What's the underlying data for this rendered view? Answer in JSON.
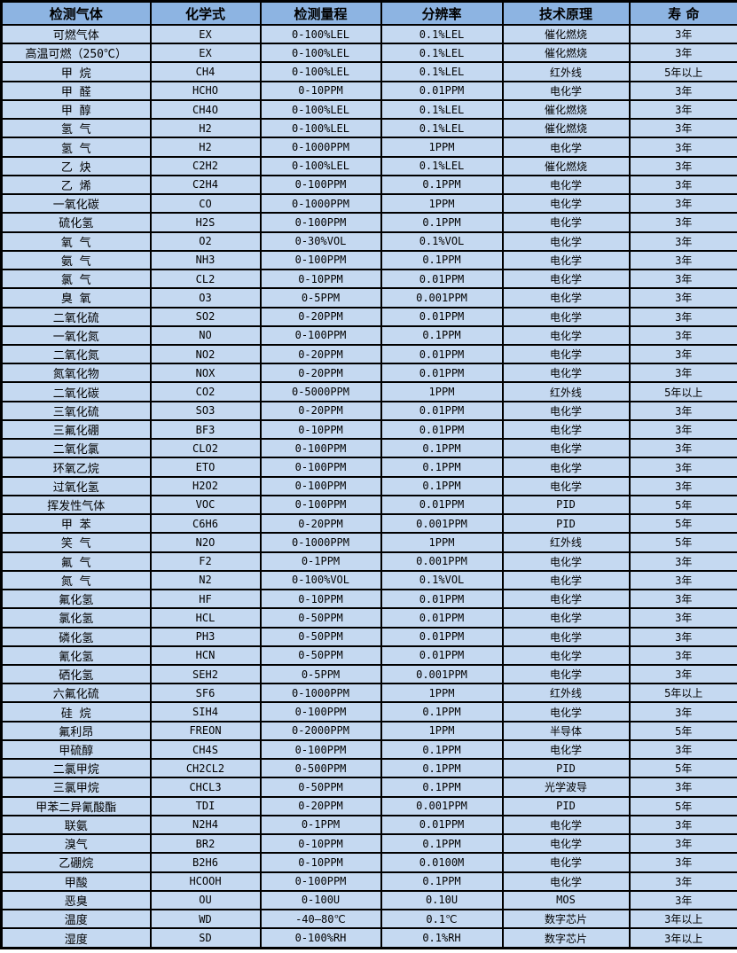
{
  "colors": {
    "header_bg": "#8DB4E2",
    "row_bg": "#C5D9F1",
    "border": "#000000",
    "text": "#000000",
    "page_bg": "#FFFFFF"
  },
  "table": {
    "headers": [
      "检测气体",
      "化学式",
      "检测量程",
      "分辨率",
      "技术原理",
      "寿 命"
    ],
    "column_keys": [
      "gas-name",
      "chemical-formula",
      "detection-range",
      "resolution",
      "technology-principle",
      "lifespan"
    ],
    "rows": [
      [
        "可燃气体",
        "EX",
        "0-100%LEL",
        "0.1%LEL",
        "催化燃烧",
        "3年"
      ],
      [
        "高温可燃（250℃）",
        "EX",
        "0-100%LEL",
        "0.1%LEL",
        "催化燃烧",
        "3年"
      ],
      [
        "甲 烷",
        "CH4",
        "0-100%LEL",
        "0.1%LEL",
        "红外线",
        "5年以上"
      ],
      [
        "甲 醛",
        "HCHO",
        "0-10PPM",
        "0.01PPM",
        "电化学",
        "3年"
      ],
      [
        "甲 醇",
        "CH4O",
        "0-100%LEL",
        "0.1%LEL",
        "催化燃烧",
        "3年"
      ],
      [
        "氢 气",
        "H2",
        "0-100%LEL",
        "0.1%LEL",
        "催化燃烧",
        "3年"
      ],
      [
        "氢 气",
        "H2",
        "0-1000PPM",
        "1PPM",
        "电化学",
        "3年"
      ],
      [
        "乙 炔",
        "C2H2",
        "0-100%LEL",
        "0.1%LEL",
        "催化燃烧",
        "3年"
      ],
      [
        "乙 烯",
        "C2H4",
        "0-100PPM",
        "0.1PPM",
        "电化学",
        "3年"
      ],
      [
        "一氧化碳",
        "CO",
        "0-1000PPM",
        "1PPM",
        "电化学",
        "3年"
      ],
      [
        "硫化氢",
        "H2S",
        "0-100PPM",
        "0.1PPM",
        "电化学",
        "3年"
      ],
      [
        "氧 气",
        "O2",
        "0-30%VOL",
        "0.1%VOL",
        "电化学",
        "3年"
      ],
      [
        "氨 气",
        "NH3",
        "0-100PPM",
        "0.1PPM",
        "电化学",
        "3年"
      ],
      [
        "氯 气",
        "CL2",
        "0-10PPM",
        "0.01PPM",
        "电化学",
        "3年"
      ],
      [
        "臭 氧",
        "O3",
        "0-5PPM",
        "0.001PPM",
        "电化学",
        "3年"
      ],
      [
        "二氧化硫",
        "SO2",
        "0-20PPM",
        "0.01PPM",
        "电化学",
        "3年"
      ],
      [
        "一氧化氮",
        "NO",
        "0-100PPM",
        "0.1PPM",
        "电化学",
        "3年"
      ],
      [
        "二氧化氮",
        "NO2",
        "0-20PPM",
        "0.01PPM",
        "电化学",
        "3年"
      ],
      [
        "氮氧化物",
        "NOX",
        "0-20PPM",
        "0.01PPM",
        "电化学",
        "3年"
      ],
      [
        "二氧化碳",
        "CO2",
        "0-5000PPM",
        "1PPM",
        "红外线",
        "5年以上"
      ],
      [
        "三氧化硫",
        "SO3",
        "0-20PPM",
        "0.01PPM",
        "电化学",
        "3年"
      ],
      [
        "三氟化硼",
        "BF3",
        "0-10PPM",
        "0.01PPM",
        "电化学",
        "3年"
      ],
      [
        "二氧化氯",
        "CLO2",
        "0-100PPM",
        "0.1PPM",
        "电化学",
        "3年"
      ],
      [
        "环氧乙烷",
        "ETO",
        "0-100PPM",
        "0.1PPM",
        "电化学",
        "3年"
      ],
      [
        "过氧化氢",
        "H2O2",
        "0-100PPM",
        "0.1PPM",
        "电化学",
        "3年"
      ],
      [
        "挥发性气体",
        "VOC",
        "0-100PPM",
        "0.01PPM",
        "PID",
        "5年"
      ],
      [
        "甲 苯",
        "C6H6",
        "0-20PPM",
        "0.001PPM",
        "PID",
        "5年"
      ],
      [
        "笑 气",
        "N2O",
        "0-1000PPM",
        "1PPM",
        "红外线",
        "5年"
      ],
      [
        "氟 气",
        "F2",
        "0-1PPM",
        "0.001PPM",
        "电化学",
        "3年"
      ],
      [
        "氮 气",
        "N2",
        "0-100%VOL",
        "0.1%VOL",
        "电化学",
        "3年"
      ],
      [
        "氟化氢",
        "HF",
        "0-10PPM",
        "0.01PPM",
        "电化学",
        "3年"
      ],
      [
        "氯化氢",
        "HCL",
        "0-50PPM",
        "0.01PPM",
        "电化学",
        "3年"
      ],
      [
        "磷化氢",
        "PH3",
        "0-50PPM",
        "0.01PPM",
        "电化学",
        "3年"
      ],
      [
        "氰化氢",
        "HCN",
        "0-50PPM",
        "0.01PPM",
        "电化学",
        "3年"
      ],
      [
        "硒化氢",
        "SEH2",
        "0-5PPM",
        "0.001PPM",
        "电化学",
        "3年"
      ],
      [
        "六氟化硫",
        "SF6",
        "0-1000PPM",
        "1PPM",
        "红外线",
        "5年以上"
      ],
      [
        "硅 烷",
        "SIH4",
        "0-100PPM",
        "0.1PPM",
        "电化学",
        "3年"
      ],
      [
        "氟利昂",
        "FREON",
        "0-2000PPM",
        "1PPM",
        "半导体",
        "5年"
      ],
      [
        "甲硫醇",
        "CH4S",
        "0-100PPM",
        "0.1PPM",
        "电化学",
        "3年"
      ],
      [
        "二氯甲烷",
        "CH2CL2",
        "0-500PPM",
        "0.1PPM",
        "PID",
        "5年"
      ],
      [
        "三氯甲烷",
        "CHCL3",
        "0-50PPM",
        "0.1PPM",
        "光学波导",
        "3年"
      ],
      [
        "甲苯二异氰酸酯",
        "TDI",
        "0-20PPM",
        "0.001PPM",
        "PID",
        "5年"
      ],
      [
        "联氨",
        "N2H4",
        "0-1PPM",
        "0.01PPM",
        "电化学",
        "3年"
      ],
      [
        "溴气",
        "BR2",
        "0-10PPM",
        "0.1PPM",
        "电化学",
        "3年"
      ],
      [
        "乙硼烷",
        "B2H6",
        "0-10PPM",
        "0.0100M",
        "电化学",
        "3年"
      ],
      [
        "甲酸",
        "HCOOH",
        "0-100PPM",
        "0.1PPM",
        "电化学",
        "3年"
      ],
      [
        "恶臭",
        "OU",
        "0-100U",
        "0.10U",
        "MOS",
        "3年"
      ],
      [
        "温度",
        "WD",
        "-40—80℃",
        "0.1℃",
        "数字芯片",
        "3年以上"
      ],
      [
        "湿度",
        "SD",
        "0-100%RH",
        "0.1%RH",
        "数字芯片",
        "3年以上"
      ]
    ]
  }
}
